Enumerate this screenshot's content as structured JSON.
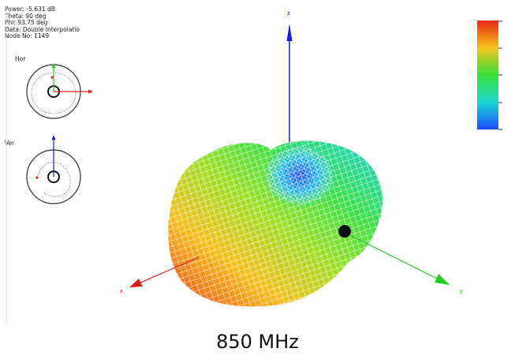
{
  "info": {
    "power": "Power: -5.631 dB",
    "theta": "Theta: 90 deg",
    "phi": "Phi: 93.75 deg",
    "data": "Data: Double Interpolatio",
    "node": "Node No: 1149"
  },
  "minimaps": {
    "hor_label": "Hor",
    "ver_label": "Ver"
  },
  "axes": {
    "x_label": "x",
    "y_label": "y",
    "z_label": "z",
    "x_color": "#e31a1c",
    "y_color": "#22cc22",
    "z_color": "#1a1ae6"
  },
  "colorbar": {
    "colors": [
      "#e8261a",
      "#f5c31a",
      "#39e03a",
      "#1ad7d0",
      "#1a4dff"
    ]
  },
  "caption": "850 MHz"
}
